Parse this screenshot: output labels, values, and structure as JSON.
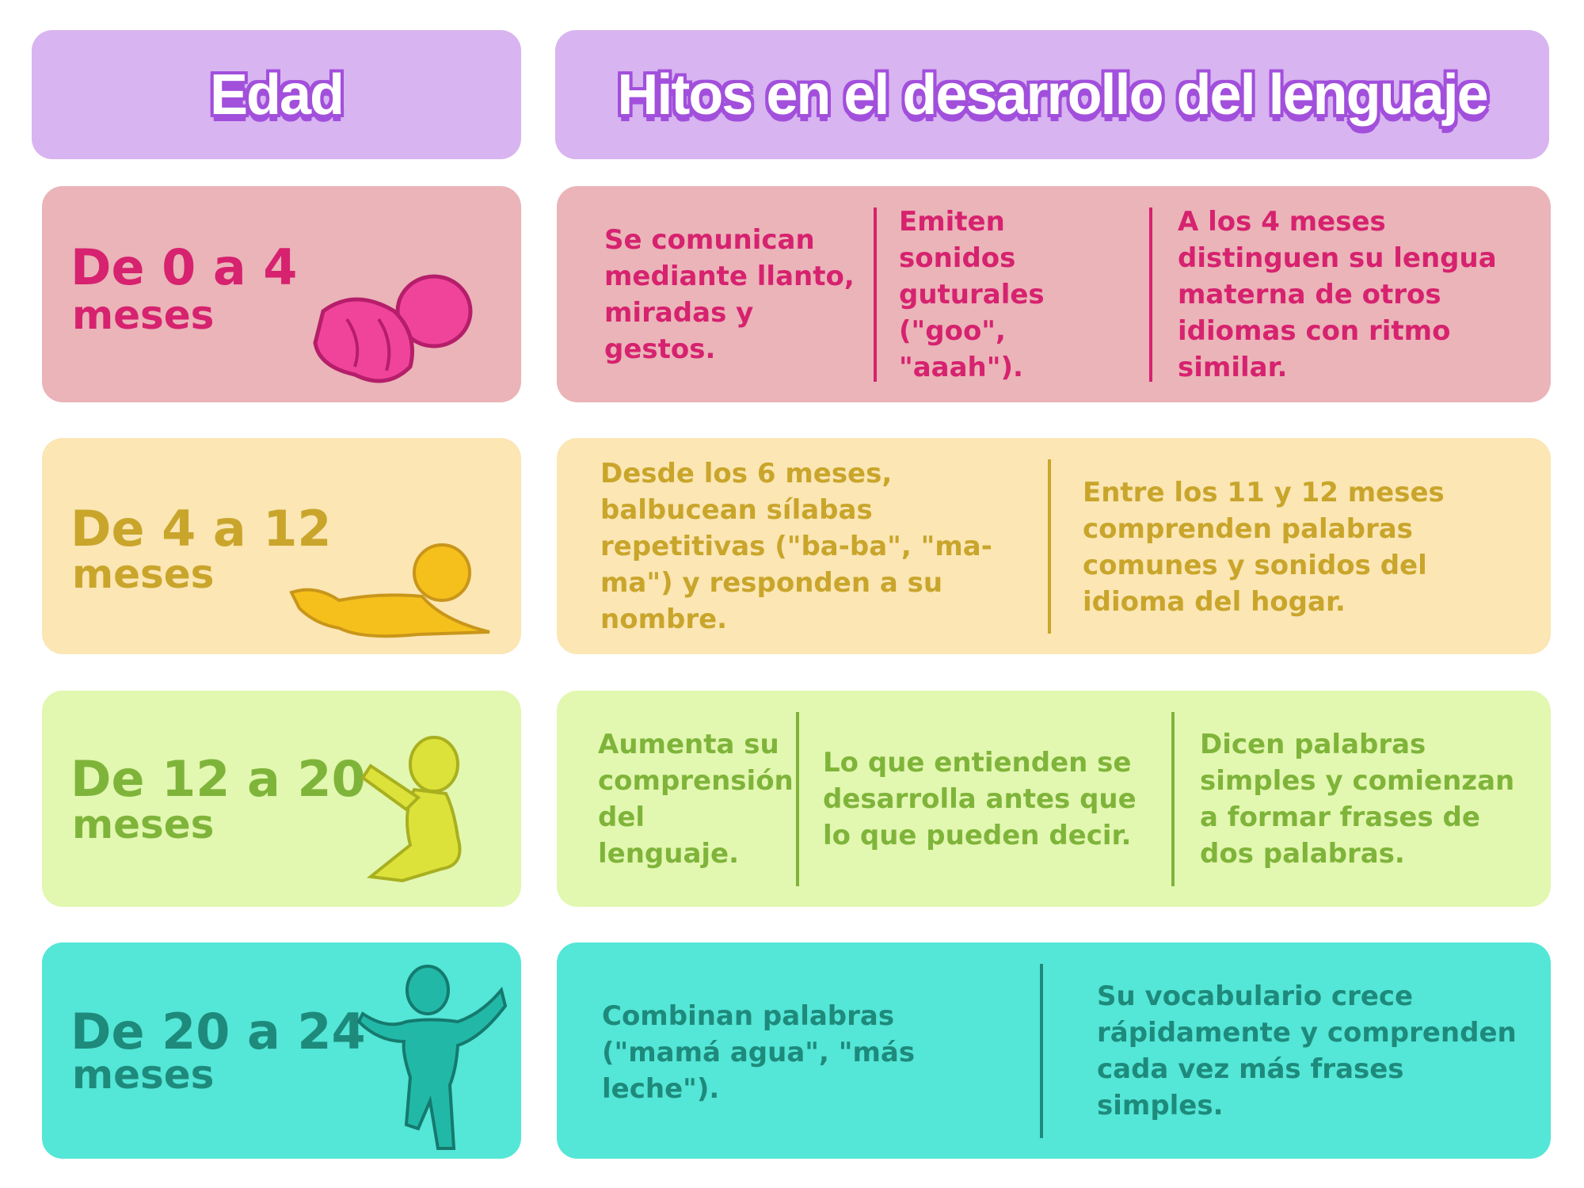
{
  "header": {
    "age": "Edad",
    "milestones": "Hitos en el desarrollo del lenguaje"
  },
  "colors": {
    "header_bg": "#d8b4f0",
    "header_text_outline": "#a24fdc"
  },
  "rows": [
    {
      "age": "De 0 a 4",
      "unit": "meses",
      "icon": "newborn-baby-icon",
      "bg": "#eab4b8",
      "text_color": "#d6226f",
      "milestones": [
        "Se comunican mediante llanto, miradas y gestos.",
        "Emiten sonidos guturales (\"goo\", \"aaah\").",
        "A los 4 meses distinguen su lengua materna de otros idiomas con ritmo similar."
      ]
    },
    {
      "age": "De 4 a 12",
      "unit": "meses",
      "icon": "crawling-baby-icon",
      "bg": "#fbe6b4",
      "text_color": "#c9a52b",
      "milestones": [
        "Desde los 6 meses, balbucean sílabas repetitivas (\"ba-ba\", \"ma-ma\") y responden a su nombre.",
        "Entre los 11 y 12 meses comprenden palabras comunes y sonidos del idioma del hogar."
      ]
    },
    {
      "age": "De 12 a 20",
      "unit": "meses",
      "icon": "sitting-baby-icon",
      "bg": "#e2f7b0",
      "text_color": "#7fb43a",
      "milestones": [
        "Aumenta su comprensión del lenguaje.",
        "Lo que entienden se desarrolla antes que lo que pueden decir.",
        "Dicen palabras simples y comienzan a formar frases de dos palabras."
      ]
    },
    {
      "age": "De 20 a 24",
      "unit": "meses",
      "icon": "walking-toddler-icon",
      "bg": "#54e6d6",
      "text_color": "#1e8a7c",
      "milestones": [
        "Combinan palabras (\"mamá agua\", \"más leche\").",
        "Su vocabulario crece rápidamente y comprenden cada vez más frases simples."
      ]
    }
  ]
}
